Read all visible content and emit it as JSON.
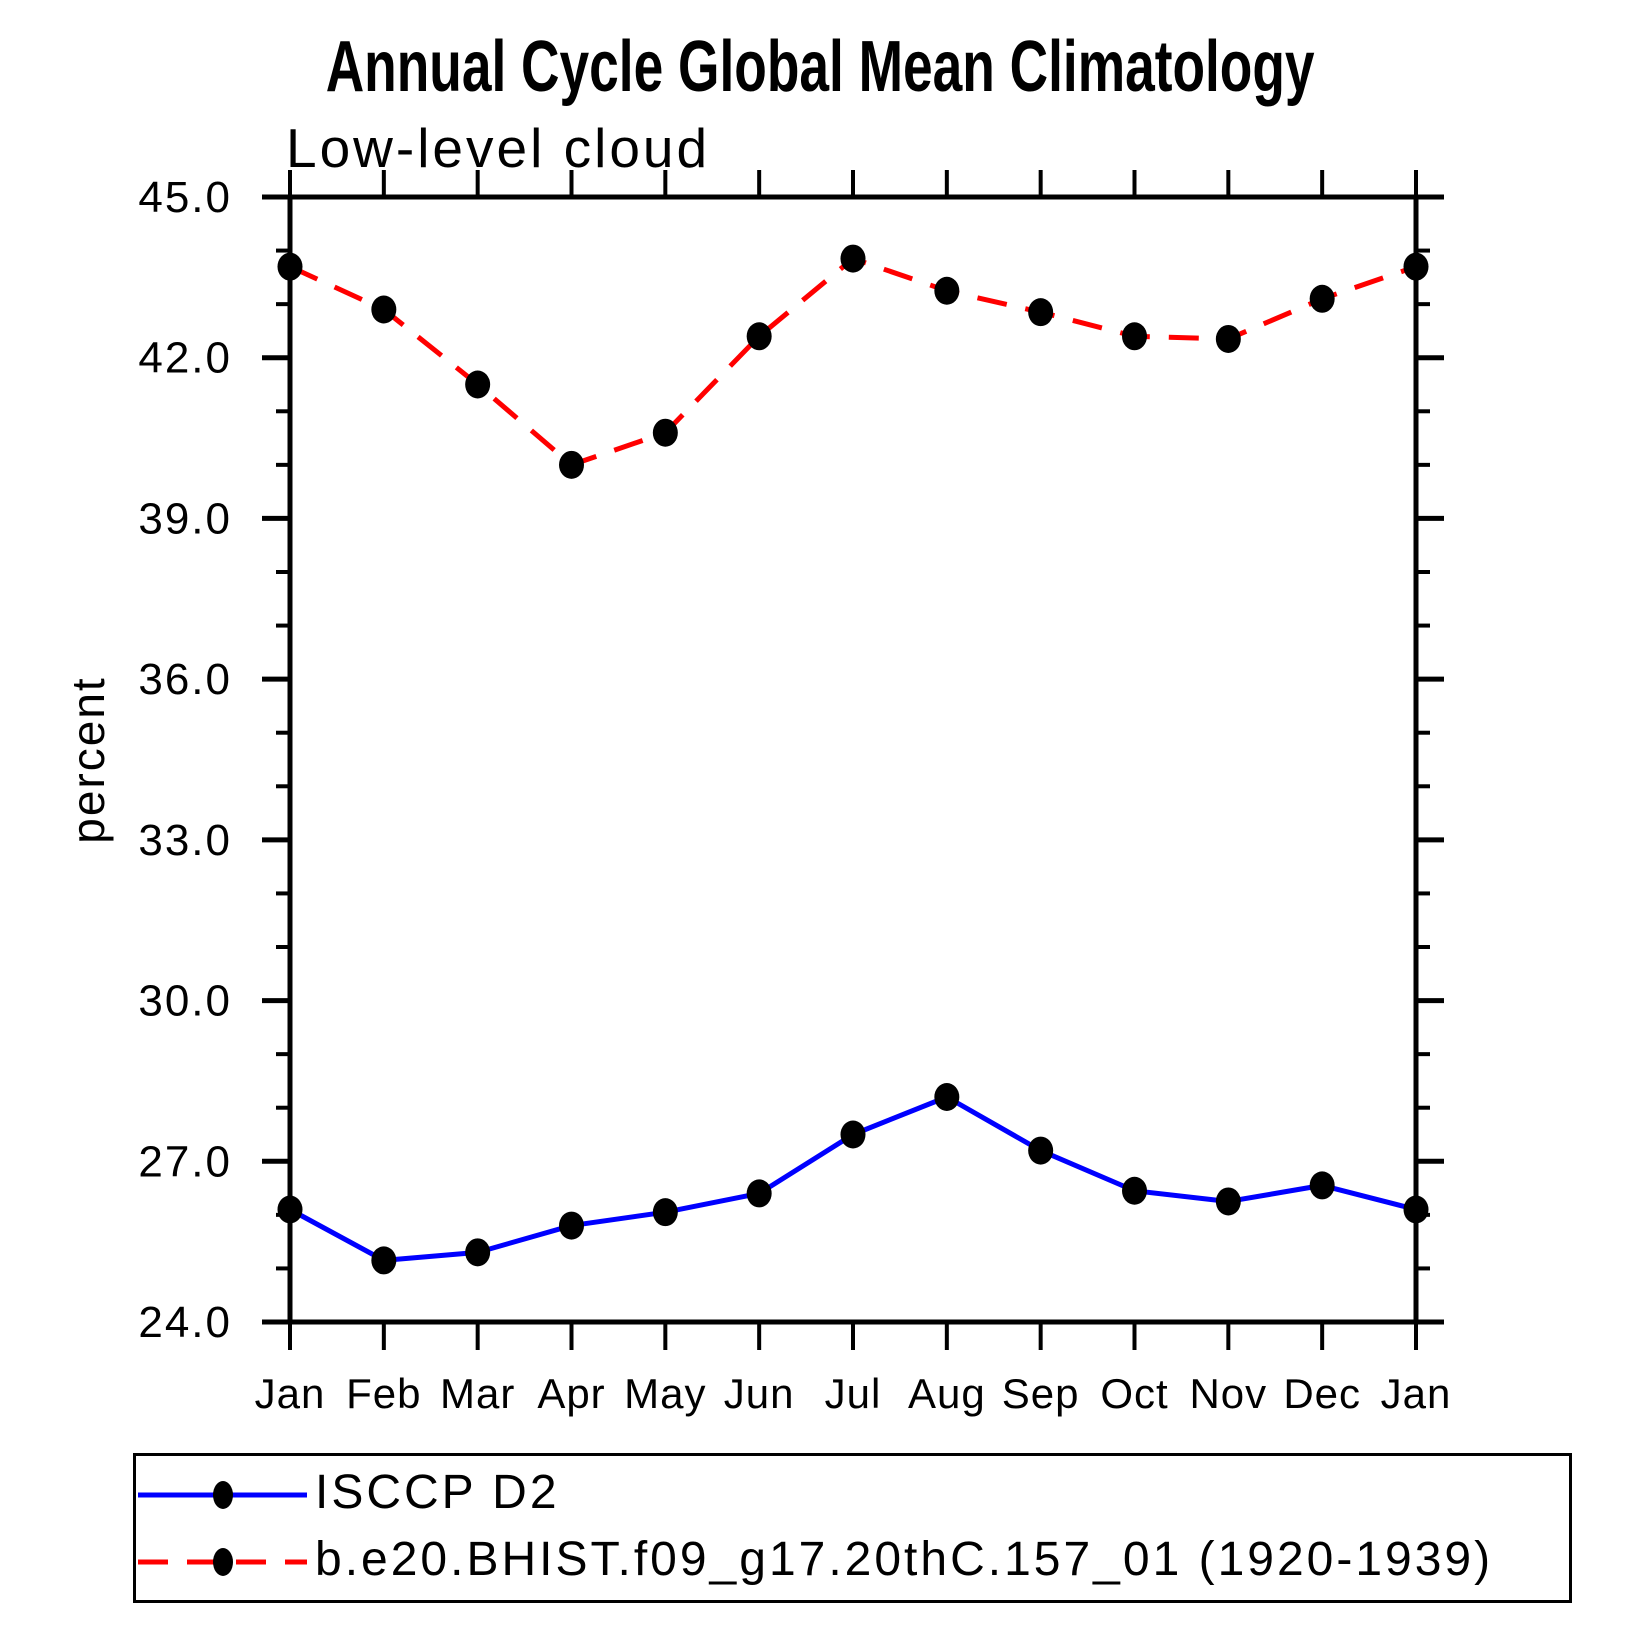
{
  "page": {
    "title": "Annual Cycle Global Mean Climatology",
    "subtitle": "Low-level cloud",
    "ylabel": "percent"
  },
  "chart_data": {
    "type": "line",
    "title": "Annual Cycle Global Mean Climatology",
    "subtitle": "Low-level cloud",
    "xlabel": "",
    "ylabel": "percent",
    "categories": [
      "Jan",
      "Feb",
      "Mar",
      "Apr",
      "May",
      "Jun",
      "Jul",
      "Aug",
      "Sep",
      "Oct",
      "Nov",
      "Dec",
      "Jan"
    ],
    "ylim": [
      24.0,
      45.0
    ],
    "y_major_ticks": [
      24,
      27,
      30,
      33,
      36,
      39,
      42,
      45
    ],
    "y_tick_labels": [
      "24.0",
      "27.0",
      "30.0",
      "33.0",
      "36.0",
      "39.0",
      "42.0",
      "45.0"
    ],
    "y_minor_step": 1.0,
    "grid": false,
    "legend_position": "bottom-left-box",
    "axis_color": "#000000",
    "series": [
      {
        "name": "ISCCP D2",
        "color": "#0000ff",
        "style": "solid",
        "marker": "filled-circle",
        "marker_color": "#000000",
        "values": [
          26.1,
          25.15,
          25.3,
          25.8,
          26.05,
          26.4,
          27.5,
          28.2,
          27.2,
          26.45,
          26.25,
          26.55,
          26.1
        ]
      },
      {
        "name": "b.e20.BHIST.f09_g17.20thC.157_01 (1920-1939)",
        "color": "#ff0000",
        "style": "dashed",
        "marker": "filled-circle",
        "marker_color": "#000000",
        "values": [
          43.7,
          42.9,
          41.5,
          40.0,
          40.6,
          42.4,
          43.85,
          43.25,
          42.85,
          42.4,
          42.35,
          43.1,
          43.7
        ]
      }
    ]
  }
}
